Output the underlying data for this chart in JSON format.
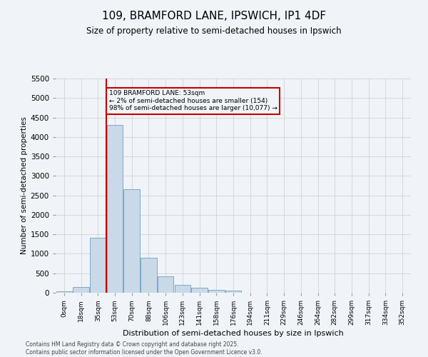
{
  "title": "109, BRAMFORD LANE, IPSWICH, IP1 4DF",
  "subtitle": "Size of property relative to semi-detached houses in Ipswich",
  "xlabel": "Distribution of semi-detached houses by size in Ipswich",
  "ylabel": "Number of semi-detached properties",
  "annotation_line1": "109 BRAMFORD LANE: 53sqm",
  "annotation_line2": "← 2% of semi-detached houses are smaller (154)",
  "annotation_line3": "98% of semi-detached houses are larger (10,077) →",
  "footer_line1": "Contains HM Land Registry data © Crown copyright and database right 2025.",
  "footer_line2": "Contains public sector information licensed under the Open Government Licence v3.0.",
  "subject_bar_index": 3,
  "bar_categories": [
    "0sqm",
    "18sqm",
    "35sqm",
    "53sqm",
    "70sqm",
    "88sqm",
    "106sqm",
    "123sqm",
    "141sqm",
    "158sqm",
    "176sqm",
    "194sqm",
    "211sqm",
    "229sqm",
    "246sqm",
    "264sqm",
    "282sqm",
    "299sqm",
    "317sqm",
    "334sqm",
    "352sqm"
  ],
  "bar_values": [
    30,
    154,
    1420,
    4300,
    2650,
    900,
    430,
    200,
    120,
    70,
    50,
    0,
    0,
    0,
    0,
    0,
    0,
    0,
    0,
    0,
    0
  ],
  "bar_color": "#c9d9e8",
  "bar_edge_color": "#7aaac8",
  "red_line_color": "#cc0000",
  "annotation_box_edge_color": "#cc0000",
  "grid_color": "#cccccc",
  "background_color": "#f0f4f8",
  "ylim": [
    0,
    5500
  ],
  "yticks": [
    0,
    500,
    1000,
    1500,
    2000,
    2500,
    3000,
    3500,
    4000,
    4500,
    5000,
    5500
  ]
}
